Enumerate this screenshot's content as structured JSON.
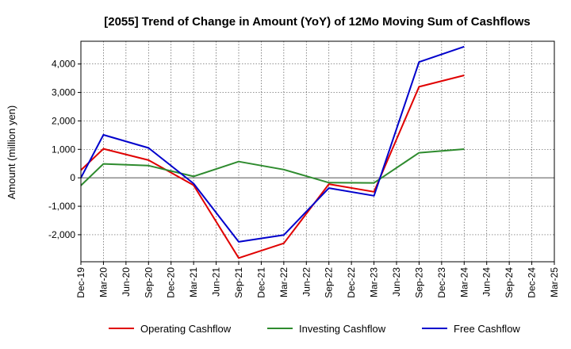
{
  "chart_data": {
    "type": "line",
    "title": "[2055]  Trend of Change in Amount (YoY) of 12Mo Moving Sum of Cashflows",
    "xlabel": "",
    "ylabel": "Amount (million yen)",
    "categories": [
      "Dec-19",
      "Mar-20",
      "Jun-20",
      "Sep-20",
      "Dec-20",
      "Mar-21",
      "Jun-21",
      "Sep-21",
      "Dec-21",
      "Mar-22",
      "Jun-22",
      "Sep-22",
      "Dec-22",
      "Mar-23",
      "Jun-23",
      "Sep-23",
      "Dec-23",
      "Mar-24",
      "Jun-24",
      "Sep-24",
      "Dec-24",
      "Mar-25"
    ],
    "ylim": [
      -2950,
      4800
    ],
    "yticks": [
      -2000,
      -1000,
      0,
      1000,
      2000,
      3000,
      4000
    ],
    "ytick_labels": [
      "-2,000",
      "-1,000",
      "0",
      "1,000",
      "2,000",
      "3,000",
      "4,000"
    ],
    "grid": true,
    "legend_position": "bottom",
    "series": [
      {
        "name": "Operating Cashflow",
        "color": "#e00000",
        "values": [
          270,
          1020,
          null,
          620,
          null,
          -260,
          null,
          -2820,
          null,
          -2300,
          null,
          -220,
          null,
          -490,
          null,
          3200,
          null,
          3600,
          null,
          null,
          null,
          null
        ]
      },
      {
        "name": "Investing Cashflow",
        "color": "#2e8b2e",
        "values": [
          -270,
          490,
          null,
          430,
          null,
          50,
          null,
          570,
          null,
          290,
          null,
          -170,
          null,
          -180,
          null,
          880,
          null,
          1010,
          null,
          null,
          null,
          null
        ]
      },
      {
        "name": "Free Cashflow",
        "color": "#0000cc",
        "values": [
          0,
          1510,
          null,
          1050,
          null,
          -200,
          null,
          -2250,
          null,
          -2010,
          null,
          -360,
          null,
          -630,
          null,
          4070,
          null,
          4610,
          null,
          null,
          null,
          null
        ]
      }
    ]
  }
}
